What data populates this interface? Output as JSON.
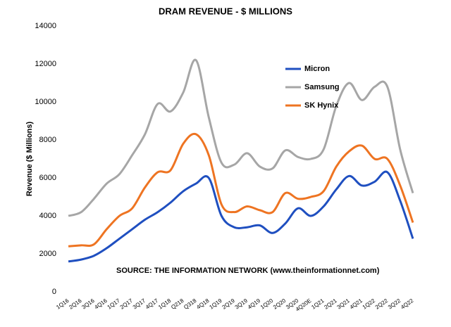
{
  "chart_data": {
    "type": "line",
    "title": "DRAM REVENUE - $ MILLIONS",
    "y_label": "Revenue ($ Millions)",
    "annotation": "SOURCE: THE INFORMATION NETWORK (www.theinformationnet.com)",
    "categories": [
      "1Q16",
      "2Q16",
      "3Q16",
      "4Q16",
      "1Q17",
      "2Q17",
      "3Q17",
      "4Q17",
      "1Q18",
      "Q218",
      "Q318",
      "4Q18",
      "1Q19",
      "2Q19",
      "3Q19",
      "4Q19",
      "1Q20",
      "2Q20",
      "3Q20",
      "4Q20E",
      "1Q21",
      "2Q21",
      "3Q21",
      "4Q21",
      "1Q22",
      "2Q22",
      "3Q22",
      "4Q22"
    ],
    "series": [
      {
        "name": "Micron",
        "color": "#1f4fc0",
        "values": [
          1600,
          1700,
          1900,
          2300,
          2800,
          3300,
          3800,
          4200,
          4700,
          5300,
          5700,
          6000,
          4000,
          3400,
          3400,
          3500,
          3100,
          3600,
          4400,
          4000,
          4500,
          5400,
          6100,
          5600,
          5800,
          6300,
          4800,
          2800
        ]
      },
      {
        "name": "Samsung",
        "color": "#a6a6a6",
        "values": [
          4000,
          4200,
          4900,
          5700,
          6200,
          7200,
          8300,
          9900,
          9500,
          10500,
          12200,
          9200,
          6800,
          6700,
          7300,
          6600,
          6500,
          7450,
          7100,
          7000,
          7500,
          9800,
          11000,
          10100,
          10800,
          10800,
          7500,
          5200
        ]
      },
      {
        "name": "SK Hynix",
        "color": "#ee7422",
        "values": [
          2400,
          2450,
          2500,
          3300,
          4000,
          4400,
          5500,
          6300,
          6400,
          7800,
          8300,
          7200,
          4600,
          4200,
          4500,
          4300,
          4200,
          5200,
          4900,
          5000,
          5300,
          6600,
          7400,
          7700,
          7000,
          7000,
          5600,
          3650
        ]
      }
    ],
    "ylim": [
      0,
      14000
    ],
    "yticks": [
      0,
      2000,
      4000,
      6000,
      8000,
      10000,
      12000,
      14000
    ],
    "grid": false,
    "legend": "upper right"
  }
}
